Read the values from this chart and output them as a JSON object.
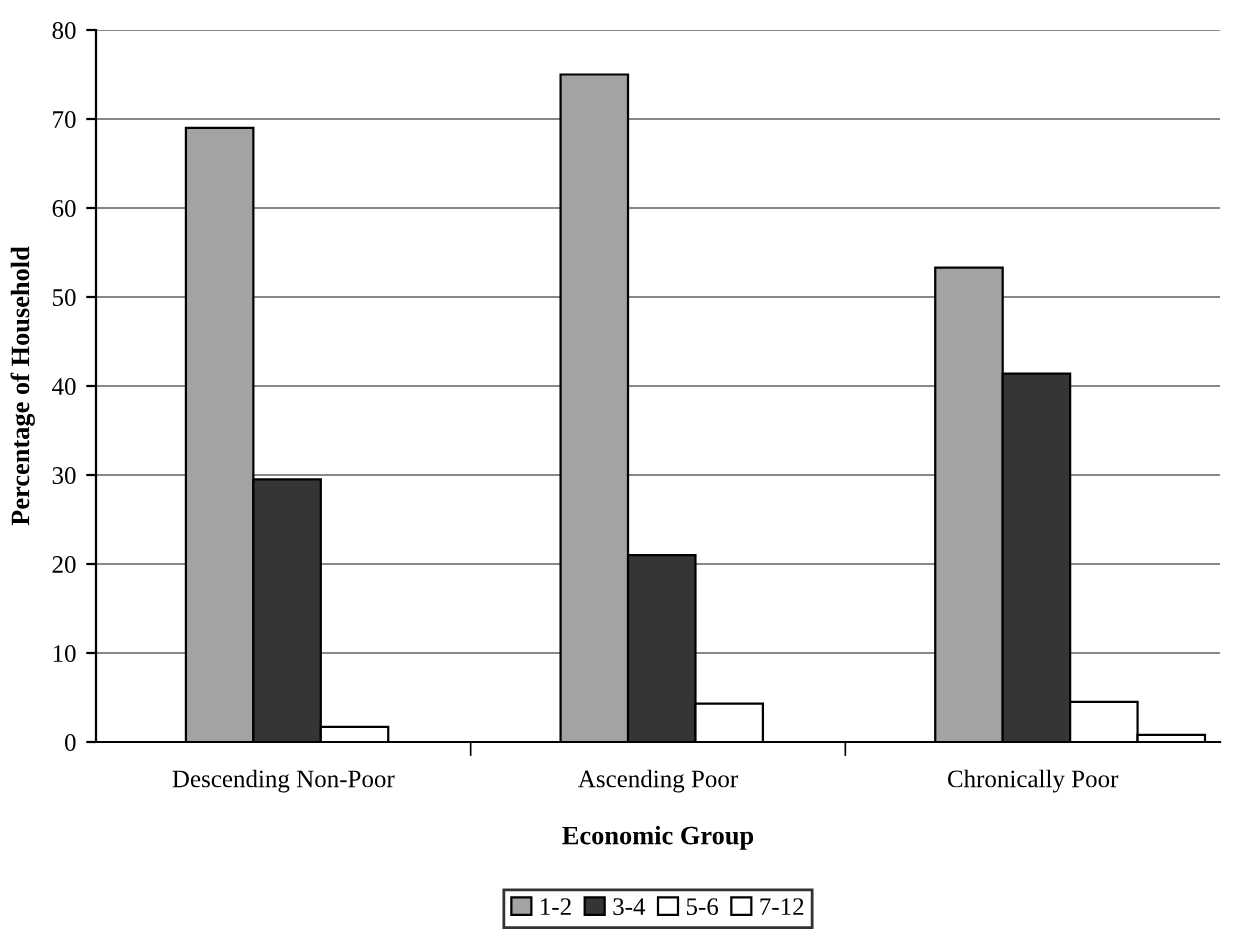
{
  "chart_data": {
    "type": "bar",
    "xlabel": "Economic Group",
    "ylabel": "Percentage of Household",
    "categories": [
      "Descending Non-Poor",
      "Ascending Poor",
      "Chronically Poor"
    ],
    "series": [
      {
        "name": "1-2",
        "color": "#a3a3a3",
        "values": [
          69,
          75,
          53.3
        ]
      },
      {
        "name": "3-4",
        "color": "#353535",
        "values": [
          29.5,
          21,
          41.4
        ]
      },
      {
        "name": "5-6",
        "color": "#ffffff",
        "values": [
          1.7,
          4.3,
          4.5
        ]
      },
      {
        "name": "7-12",
        "color": "#ffffff",
        "values": [
          null,
          null,
          0.8
        ]
      }
    ],
    "ylim": [
      0,
      80
    ],
    "yticks": [
      0,
      10,
      20,
      30,
      40,
      50,
      60,
      70,
      80
    ],
    "grid": "y",
    "legend": "bottom"
  }
}
